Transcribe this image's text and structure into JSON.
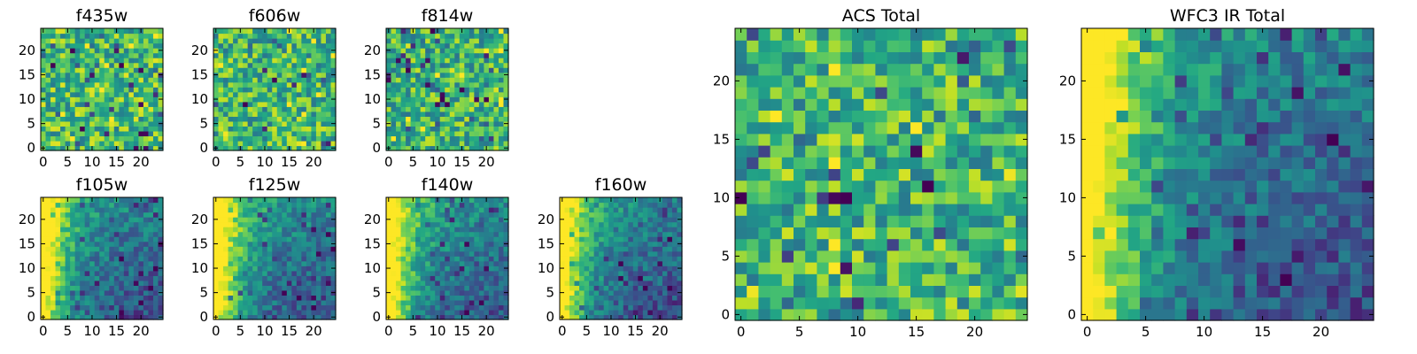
{
  "chart_data": [
    {
      "type": "heatmap",
      "title": "f435w",
      "xticks": [
        0,
        5,
        10,
        15,
        20
      ],
      "yticks": [
        0,
        5,
        10,
        15,
        20
      ],
      "grid_size": 25,
      "colormap": "viridis",
      "pattern": "noise",
      "level": 0.68
    },
    {
      "type": "heatmap",
      "title": "f606w",
      "xticks": [
        0,
        5,
        10,
        15,
        20
      ],
      "yticks": [
        0,
        5,
        10,
        15,
        20
      ],
      "grid_size": 25,
      "colormap": "viridis",
      "pattern": "noise",
      "level": 0.66
    },
    {
      "type": "heatmap",
      "title": "f814w",
      "xticks": [
        0,
        5,
        10,
        15,
        20
      ],
      "yticks": [
        0,
        5,
        10,
        15,
        20
      ],
      "grid_size": 25,
      "colormap": "viridis",
      "pattern": "noise",
      "level": 0.64
    },
    {
      "type": "heatmap",
      "title": "f105w",
      "xticks": [
        0,
        5,
        10,
        15,
        20
      ],
      "yticks": [
        0,
        5,
        10,
        15,
        20
      ],
      "grid_size": 25,
      "colormap": "viridis",
      "pattern": "gradient",
      "level": 0.45
    },
    {
      "type": "heatmap",
      "title": "f125w",
      "xticks": [
        0,
        5,
        10,
        15,
        20
      ],
      "yticks": [
        0,
        5,
        10,
        15,
        20
      ],
      "grid_size": 25,
      "colormap": "viridis",
      "pattern": "gradient",
      "level": 0.5
    },
    {
      "type": "heatmap",
      "title": "f140w",
      "xticks": [
        0,
        5,
        10,
        15,
        20
      ],
      "yticks": [
        0,
        5,
        10,
        15,
        20
      ],
      "grid_size": 25,
      "colormap": "viridis",
      "pattern": "gradient",
      "level": 0.5
    },
    {
      "type": "heatmap",
      "title": "f160w",
      "xticks": [
        0,
        5,
        10,
        15,
        20
      ],
      "yticks": [
        0,
        5,
        10,
        15,
        20
      ],
      "grid_size": 25,
      "colormap": "viridis",
      "pattern": "gradient",
      "level": 0.45
    },
    {
      "type": "heatmap",
      "title": "ACS Total",
      "xticks": [
        0,
        5,
        10,
        15,
        20
      ],
      "yticks": [
        0,
        5,
        10,
        15,
        20
      ],
      "grid_size": 25,
      "colormap": "viridis",
      "pattern": "noise",
      "level": 0.66
    },
    {
      "type": "heatmap",
      "title": "WFC3 IR Total",
      "xticks": [
        0,
        5,
        10,
        15,
        20
      ],
      "yticks": [
        0,
        5,
        10,
        15,
        20
      ],
      "grid_size": 25,
      "colormap": "viridis",
      "pattern": "gradient",
      "level": 0.45
    }
  ]
}
